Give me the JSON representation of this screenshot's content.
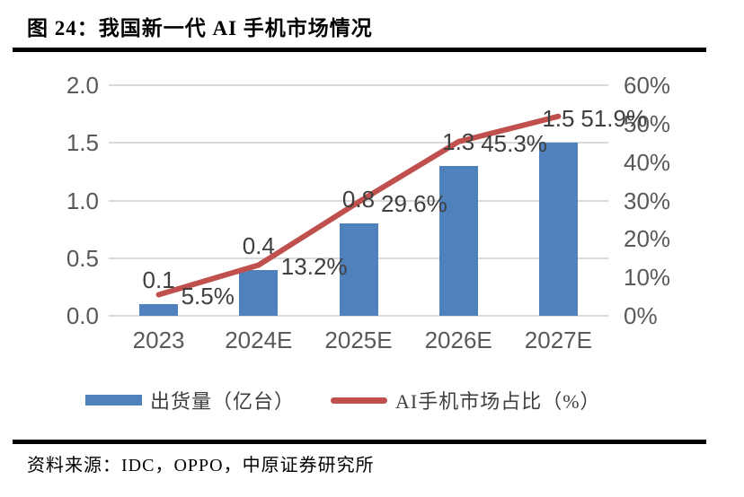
{
  "figure": {
    "title": "图 24：我国新一代 AI 手机市场情况",
    "source": "资料来源：IDC，OPPO，中原证券研究所"
  },
  "chart_data": {
    "type": "bar",
    "subtype": "bar-line-combo",
    "categories": [
      "2023",
      "2024E",
      "2025E",
      "2026E",
      "2027E"
    ],
    "series": [
      {
        "name": "出货量（亿台）",
        "type": "bar",
        "axis": "left",
        "color": "#4F81BC",
        "values": [
          0.1,
          0.4,
          0.8,
          1.3,
          1.5
        ],
        "labels": [
          "0.1",
          "0.4",
          "0.8",
          "1.3",
          "1.5"
        ]
      },
      {
        "name": "AI手机市场占比（%）",
        "type": "line",
        "axis": "right",
        "color": "#C0504D",
        "values": [
          5.5,
          13.2,
          29.6,
          45.3,
          51.9
        ],
        "labels": [
          "5.5%",
          "13.2%",
          "29.6%",
          "45.3%",
          "51.9%"
        ]
      }
    ],
    "left_axis": {
      "min": 0.0,
      "max": 2.0,
      "ticks": [
        "2.0",
        "1.5",
        "1.0",
        "0.5",
        "0.0"
      ]
    },
    "right_axis": {
      "min": 0,
      "max": 60,
      "ticks": [
        "60%",
        "50%",
        "40%",
        "30%",
        "20%",
        "10%",
        "0%"
      ]
    },
    "grid": true,
    "gridline_color": "#d9d9d9",
    "legend_position": "bottom"
  }
}
